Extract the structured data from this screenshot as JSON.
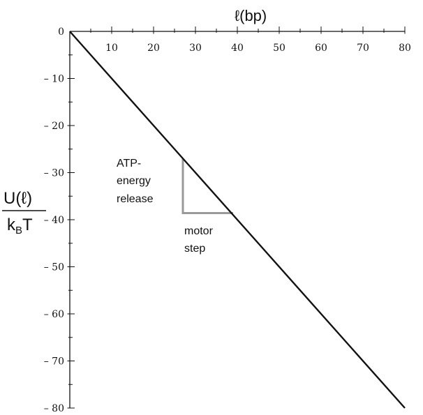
{
  "chart_data": {
    "type": "line",
    "title": "",
    "xlabel": "ℓ(bp)",
    "ylabel": {
      "numerator": "U(ℓ)",
      "denominator_k": "k",
      "denominator_sub": "B",
      "denominator_T": "T"
    },
    "xlim": [
      0,
      80
    ],
    "ylim": [
      -80,
      0
    ],
    "x_ticks": [
      10,
      20,
      30,
      40,
      50,
      60,
      70,
      80
    ],
    "y_ticks": [
      0,
      -10,
      -20,
      -30,
      -40,
      -50,
      -60,
      -70,
      -80
    ],
    "x_tick_labels": [
      "10",
      "20",
      "30",
      "40",
      "50",
      "60",
      "70",
      "80"
    ],
    "y_tick_labels": [
      "0",
      "– 10",
      "– 20",
      "– 30",
      "– 40",
      "– 50",
      "– 60",
      "– 70",
      "– 80"
    ],
    "x_minor_step": 5,
    "y_minor_step": 5,
    "series": [
      {
        "x": [
          0,
          80
        ],
        "y": [
          0,
          -80
        ],
        "color": "#111111"
      }
    ],
    "step_marker": {
      "points": [
        [
          27,
          -27
        ],
        [
          27,
          -38.6
        ],
        [
          39,
          -38.6
        ]
      ],
      "color": "#999999"
    },
    "annotations": {
      "energy_line1": "ATP-",
      "energy_line2": "energy",
      "energy_line3": "release",
      "step_line1": "motor",
      "step_line2": "step"
    }
  }
}
